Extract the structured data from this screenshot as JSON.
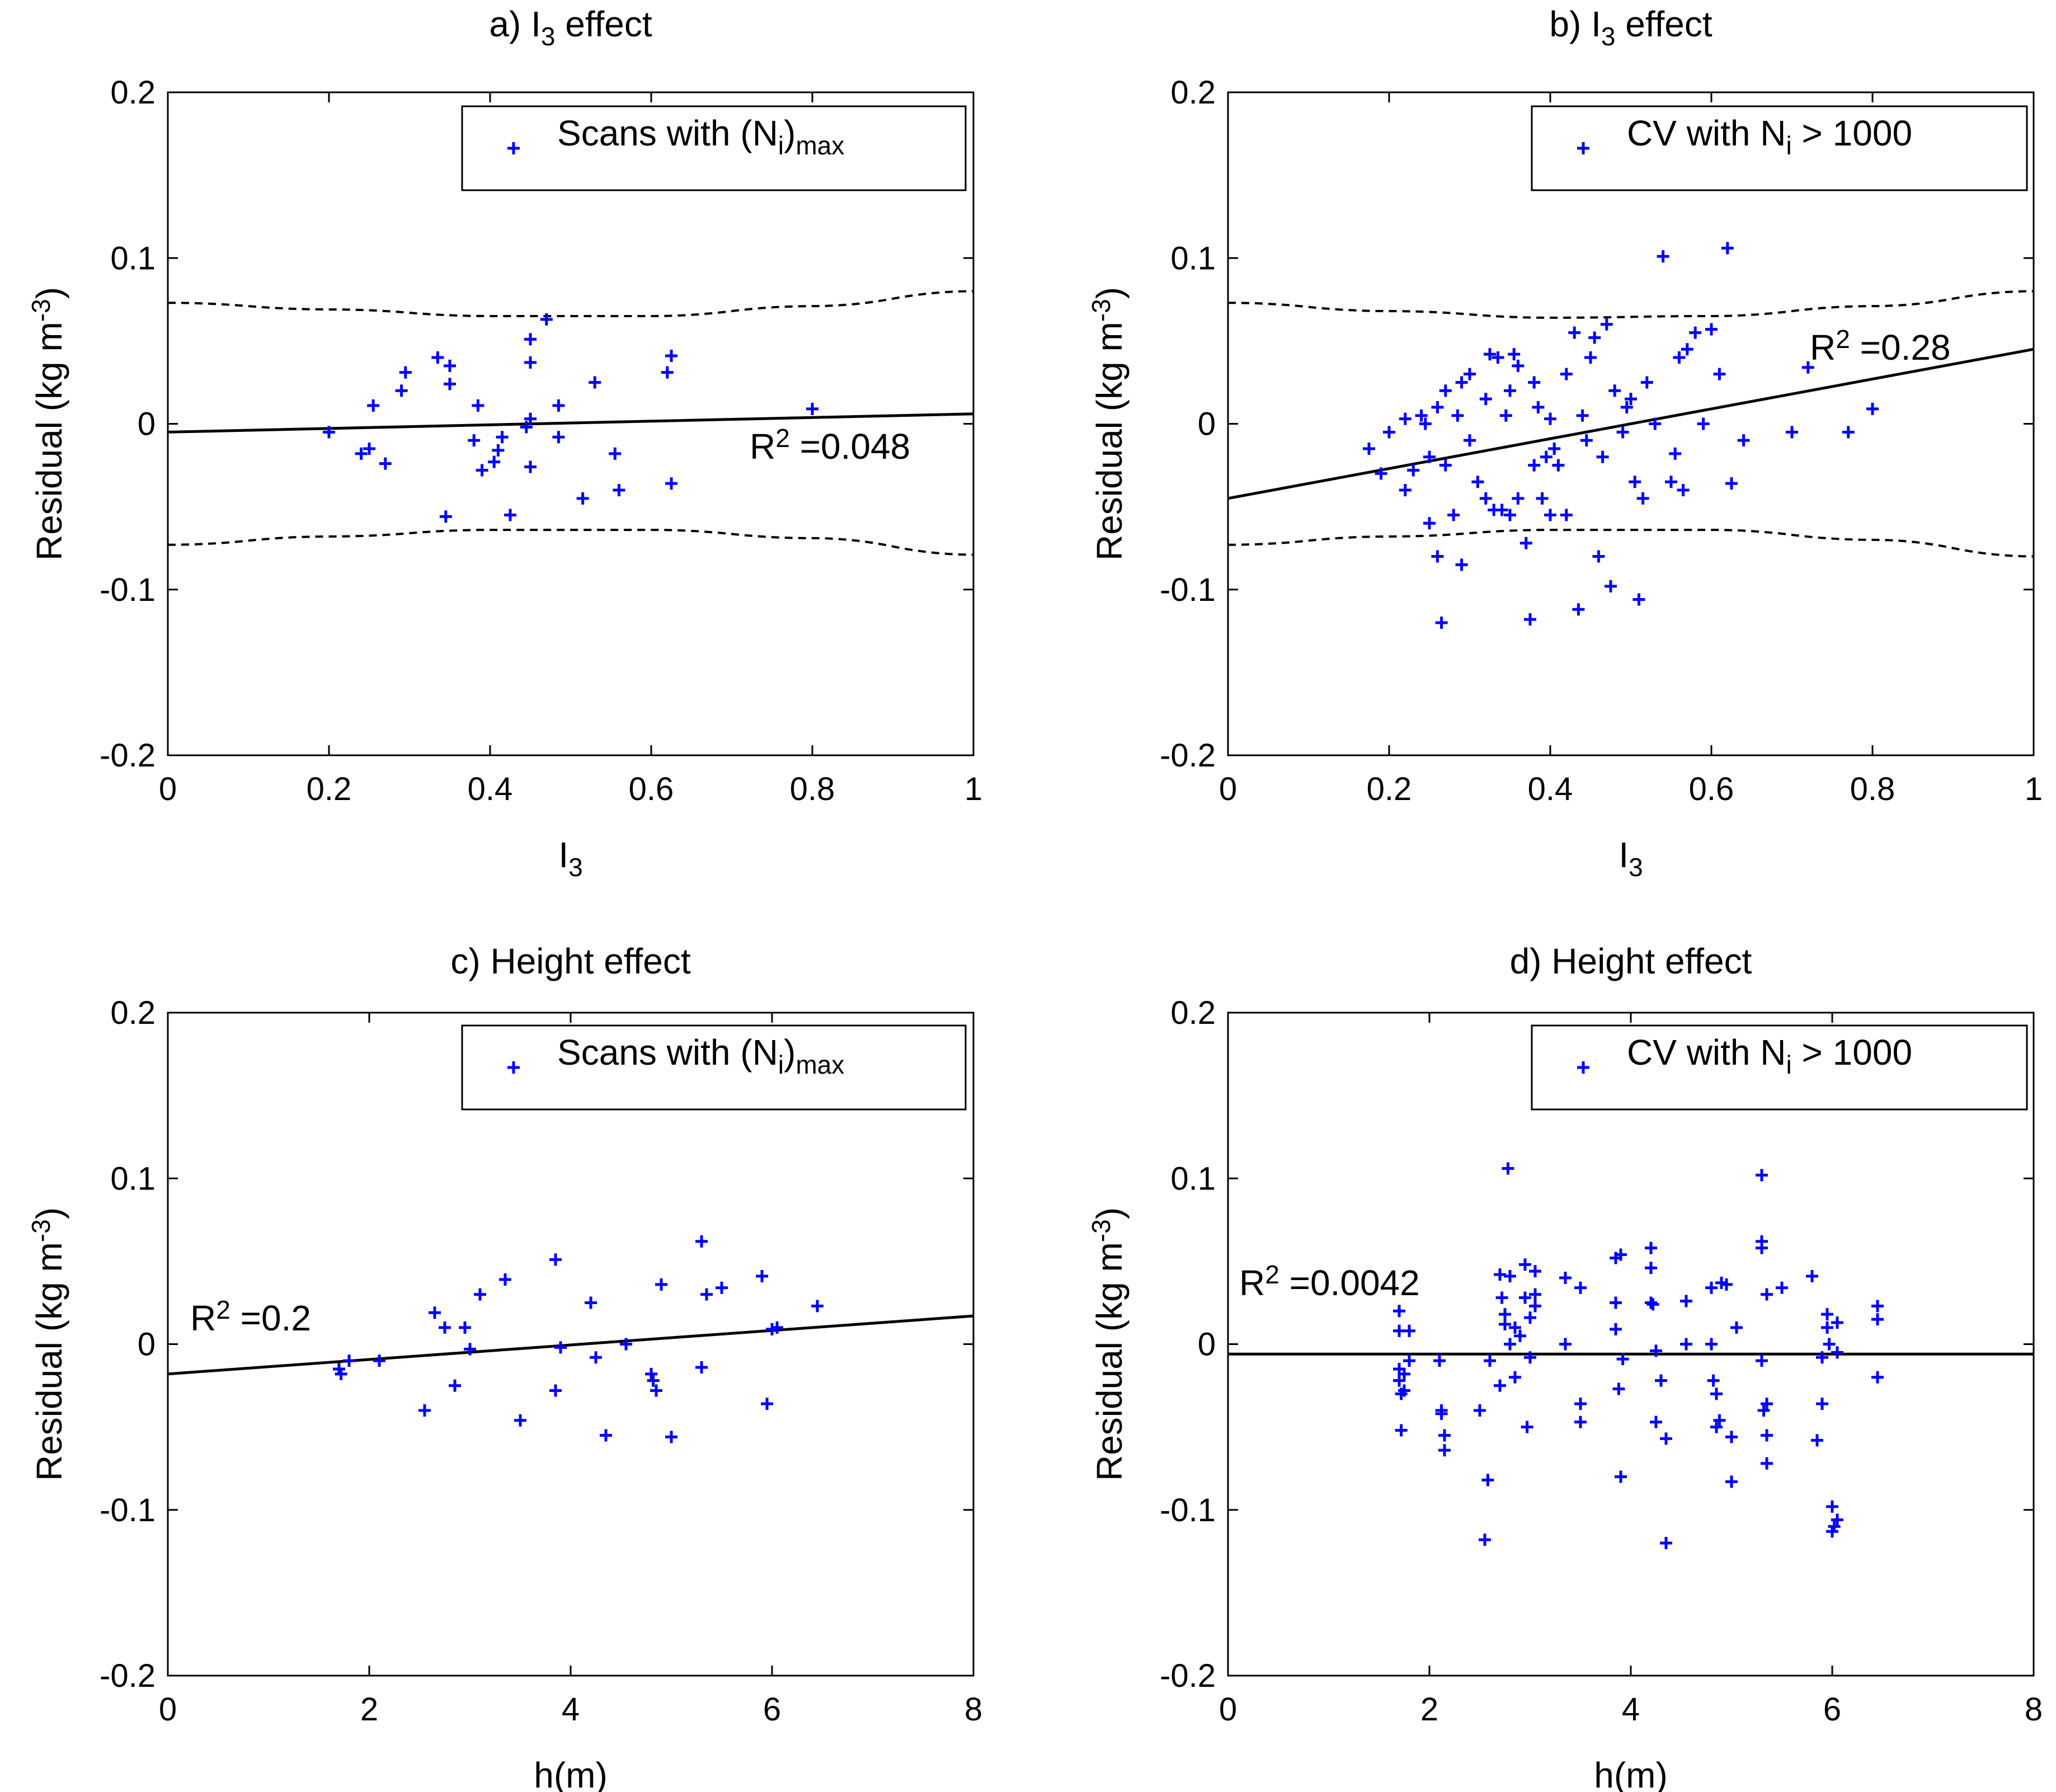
{
  "colors": {
    "marker": "#0000ff",
    "line": "#000000",
    "axes": "#000000",
    "background": "#ffffff"
  },
  "chart_data": [
    {
      "id": "a",
      "type": "scatter",
      "title": {
        "prefix": "a) I",
        "sub": "3",
        "suffix": " effect"
      },
      "xlabel": {
        "main": "I",
        "sub": "3"
      },
      "ylabel": {
        "main": "Residual (kg m",
        "sup": "-3",
        "end": ")"
      },
      "xlim": [
        0,
        1
      ],
      "ylim": [
        -0.2,
        0.2
      ],
      "xticks": [
        "0",
        "0.2",
        "0.4",
        "0.6",
        "0.8",
        "1"
      ],
      "yticks": [
        "-0.2",
        "-0.1",
        "0",
        "0.1",
        "0.2"
      ],
      "legend": {
        "parts": [
          "Scans with (N",
          "i",
          ")",
          "max"
        ],
        "position": "top-right",
        "marker": "+"
      },
      "r2": {
        "lead": "R",
        "sup": "2",
        "value": " =0.048"
      },
      "fit_line": {
        "x": [
          0,
          1
        ],
        "y": [
          -0.005,
          0.006
        ]
      },
      "confidence_bounds": {
        "upper": {
          "x": [
            0,
            0.2,
            0.4,
            0.6,
            0.8,
            1
          ],
          "y": [
            0.073,
            0.069,
            0.065,
            0.065,
            0.071,
            0.08
          ]
        },
        "lower": {
          "x": [
            0,
            0.2,
            0.4,
            0.6,
            0.8,
            1
          ],
          "y": [
            -0.073,
            -0.068,
            -0.064,
            -0.064,
            -0.069,
            -0.079
          ]
        }
      },
      "points": [
        [
          0.2,
          -0.005
        ],
        [
          0.24,
          -0.018
        ],
        [
          0.25,
          -0.015
        ],
        [
          0.255,
          0.011
        ],
        [
          0.27,
          -0.024
        ],
        [
          0.29,
          0.02
        ],
        [
          0.295,
          0.031
        ],
        [
          0.335,
          0.04
        ],
        [
          0.35,
          0.035
        ],
        [
          0.35,
          0.024
        ],
        [
          0.345,
          -0.056
        ],
        [
          0.38,
          -0.01
        ],
        [
          0.385,
          0.011
        ],
        [
          0.39,
          -0.028
        ],
        [
          0.405,
          -0.023
        ],
        [
          0.41,
          -0.016
        ],
        [
          0.415,
          -0.008
        ],
        [
          0.425,
          -0.055
        ],
        [
          0.445,
          -0.002
        ],
        [
          0.45,
          0.003
        ],
        [
          0.45,
          0.037
        ],
        [
          0.45,
          -0.026
        ],
        [
          0.45,
          0.051
        ],
        [
          0.47,
          0.063
        ],
        [
          0.485,
          0.011
        ],
        [
          0.485,
          -0.008
        ],
        [
          0.515,
          -0.045
        ],
        [
          0.53,
          0.025
        ],
        [
          0.555,
          -0.018
        ],
        [
          0.56,
          -0.04
        ],
        [
          0.62,
          0.031
        ],
        [
          0.625,
          0.041
        ],
        [
          0.625,
          -0.036
        ],
        [
          0.8,
          0.009
        ]
      ]
    },
    {
      "id": "b",
      "type": "scatter",
      "title": {
        "prefix": "b) I",
        "sub": "3",
        "suffix": " effect"
      },
      "xlabel": {
        "main": "I",
        "sub": "3"
      },
      "ylabel": {
        "main": "Residual (kg m",
        "sup": "-3",
        "end": ")"
      },
      "xlim": [
        0,
        1
      ],
      "ylim": [
        -0.2,
        0.2
      ],
      "xticks": [
        "0",
        "0.2",
        "0.4",
        "0.6",
        "0.8",
        "1"
      ],
      "yticks": [
        "-0.2",
        "-0.1",
        "0",
        "0.1",
        "0.2"
      ],
      "legend": {
        "parts": [
          "CV with N",
          "i",
          " > 1000"
        ],
        "position": "top-right",
        "marker": "+"
      },
      "r2": {
        "lead": "R",
        "sup": "2",
        "value": " =0.28"
      },
      "fit_line": {
        "x": [
          0,
          1
        ],
        "y": [
          -0.045,
          0.045
        ]
      },
      "confidence_bounds": {
        "upper": {
          "x": [
            0,
            0.2,
            0.4,
            0.6,
            0.8,
            1
          ],
          "y": [
            0.073,
            0.068,
            0.064,
            0.065,
            0.071,
            0.08
          ]
        },
        "lower": {
          "x": [
            0,
            0.2,
            0.4,
            0.6,
            0.8,
            1
          ],
          "y": [
            -0.073,
            -0.068,
            -0.064,
            -0.064,
            -0.07,
            -0.08
          ]
        }
      },
      "points": [
        [
          0.175,
          -0.015
        ],
        [
          0.19,
          -0.03
        ],
        [
          0.2,
          -0.005
        ],
        [
          0.22,
          0.003
        ],
        [
          0.22,
          -0.04
        ],
        [
          0.23,
          -0.028
        ],
        [
          0.24,
          0.005
        ],
        [
          0.245,
          0.0
        ],
        [
          0.25,
          -0.02
        ],
        [
          0.25,
          -0.06
        ],
        [
          0.26,
          0.01
        ],
        [
          0.26,
          -0.08
        ],
        [
          0.265,
          -0.12
        ],
        [
          0.27,
          0.02
        ],
        [
          0.27,
          -0.025
        ],
        [
          0.28,
          -0.055
        ],
        [
          0.285,
          0.005
        ],
        [
          0.29,
          -0.085
        ],
        [
          0.29,
          0.025
        ],
        [
          0.3,
          0.03
        ],
        [
          0.3,
          -0.01
        ],
        [
          0.31,
          -0.035
        ],
        [
          0.32,
          -0.045
        ],
        [
          0.32,
          0.015
        ],
        [
          0.325,
          0.042
        ],
        [
          0.33,
          -0.052
        ],
        [
          0.335,
          0.04
        ],
        [
          0.34,
          -0.052
        ],
        [
          0.345,
          0.005
        ],
        [
          0.35,
          -0.055
        ],
        [
          0.35,
          0.02
        ],
        [
          0.355,
          0.042
        ],
        [
          0.36,
          0.035
        ],
        [
          0.36,
          -0.045
        ],
        [
          0.37,
          -0.072
        ],
        [
          0.375,
          -0.118
        ],
        [
          0.38,
          -0.025
        ],
        [
          0.38,
          0.025
        ],
        [
          0.385,
          0.01
        ],
        [
          0.39,
          -0.045
        ],
        [
          0.395,
          -0.02
        ],
        [
          0.4,
          0.003
        ],
        [
          0.4,
          -0.055
        ],
        [
          0.405,
          -0.015
        ],
        [
          0.41,
          -0.025
        ],
        [
          0.42,
          0.03
        ],
        [
          0.42,
          -0.055
        ],
        [
          0.43,
          0.055
        ],
        [
          0.435,
          -0.112
        ],
        [
          0.44,
          0.005
        ],
        [
          0.445,
          -0.01
        ],
        [
          0.45,
          0.04
        ],
        [
          0.455,
          0.052
        ],
        [
          0.46,
          -0.08
        ],
        [
          0.465,
          -0.02
        ],
        [
          0.47,
          0.06
        ],
        [
          0.475,
          -0.098
        ],
        [
          0.48,
          0.02
        ],
        [
          0.49,
          -0.005
        ],
        [
          0.495,
          0.01
        ],
        [
          0.5,
          0.015
        ],
        [
          0.505,
          -0.035
        ],
        [
          0.51,
          -0.106
        ],
        [
          0.515,
          -0.045
        ],
        [
          0.52,
          0.025
        ],
        [
          0.53,
          0.0
        ],
        [
          0.54,
          0.101
        ],
        [
          0.55,
          -0.035
        ],
        [
          0.555,
          -0.018
        ],
        [
          0.56,
          0.04
        ],
        [
          0.565,
          -0.04
        ],
        [
          0.57,
          0.045
        ],
        [
          0.58,
          0.055
        ],
        [
          0.59,
          0.0
        ],
        [
          0.6,
          0.057
        ],
        [
          0.61,
          0.03
        ],
        [
          0.62,
          0.106
        ],
        [
          0.625,
          -0.036
        ],
        [
          0.64,
          -0.01
        ],
        [
          0.7,
          -0.005
        ],
        [
          0.72,
          0.034
        ],
        [
          0.77,
          -0.005
        ],
        [
          0.8,
          0.009
        ]
      ]
    },
    {
      "id": "c",
      "type": "scatter",
      "title": {
        "prefix": "c) Height effect",
        "sub": "",
        "suffix": ""
      },
      "xlabel": {
        "main": "h(m)",
        "sub": ""
      },
      "ylabel": {
        "main": "Residual (kg m",
        "sup": "-3",
        "end": ")"
      },
      "xlim": [
        0,
        8
      ],
      "ylim": [
        -0.2,
        0.2
      ],
      "xticks": [
        "0",
        "2",
        "4",
        "6",
        "8"
      ],
      "yticks": [
        "-0.2",
        "-0.1",
        "0",
        "0.1",
        "0.2"
      ],
      "legend": {
        "parts": [
          "Scans with (N",
          "i",
          ")",
          "max"
        ],
        "position": "top-right",
        "marker": "+"
      },
      "r2": {
        "lead": "R",
        "sup": "2",
        "value": " =0.2"
      },
      "fit_line": {
        "x": [
          0,
          8
        ],
        "y": [
          -0.018,
          0.017
        ]
      },
      "points": [
        [
          1.7,
          -0.015
        ],
        [
          1.72,
          -0.018
        ],
        [
          1.8,
          -0.01
        ],
        [
          2.1,
          -0.01
        ],
        [
          2.55,
          -0.04
        ],
        [
          2.65,
          0.019
        ],
        [
          2.75,
          0.01
        ],
        [
          2.85,
          -0.025
        ],
        [
          2.95,
          0.01
        ],
        [
          3.0,
          -0.003
        ],
        [
          3.1,
          0.03
        ],
        [
          3.35,
          0.039
        ],
        [
          3.5,
          -0.046
        ],
        [
          3.85,
          0.051
        ],
        [
          3.85,
          -0.028
        ],
        [
          3.9,
          -0.002
        ],
        [
          4.2,
          0.025
        ],
        [
          4.25,
          -0.008
        ],
        [
          4.35,
          -0.055
        ],
        [
          4.55,
          0.0
        ],
        [
          4.8,
          -0.018
        ],
        [
          4.82,
          -0.022
        ],
        [
          4.85,
          -0.028
        ],
        [
          4.9,
          0.036
        ],
        [
          5.0,
          -0.056
        ],
        [
          5.3,
          0.062
        ],
        [
          5.3,
          -0.014
        ],
        [
          5.35,
          0.03
        ],
        [
          5.5,
          0.034
        ],
        [
          5.9,
          0.041
        ],
        [
          5.95,
          -0.036
        ],
        [
          6.0,
          0.009
        ],
        [
          6.05,
          0.01
        ],
        [
          6.45,
          0.023
        ]
      ]
    },
    {
      "id": "d",
      "type": "scatter",
      "title": {
        "prefix": "d) Height effect",
        "sub": "",
        "suffix": ""
      },
      "xlabel": {
        "main": "h(m)",
        "sub": ""
      },
      "ylabel": {
        "main": "Residual (kg m",
        "sup": "-3",
        "end": ")"
      },
      "xlim": [
        0,
        8
      ],
      "ylim": [
        -0.2,
        0.2
      ],
      "xticks": [
        "0",
        "2",
        "4",
        "6",
        "8"
      ],
      "yticks": [
        "-0.2",
        "-0.1",
        "0",
        "0.1",
        "0.2"
      ],
      "legend": {
        "parts": [
          "CV with N",
          "i",
          " > 1000"
        ],
        "position": "top-right",
        "marker": "+"
      },
      "r2": {
        "lead": "R",
        "sup": "2",
        "value": " =0.0042"
      },
      "fit_line": {
        "x": [
          0,
          8
        ],
        "y": [
          -0.006,
          -0.006
        ]
      },
      "points": [
        [
          1.7,
          0.02
        ],
        [
          1.7,
          0.008
        ],
        [
          1.7,
          -0.015
        ],
        [
          1.7,
          -0.022
        ],
        [
          1.72,
          -0.03
        ],
        [
          1.72,
          -0.052
        ],
        [
          1.75,
          -0.018
        ],
        [
          1.75,
          -0.028
        ],
        [
          1.8,
          0.008
        ],
        [
          1.8,
          -0.01
        ],
        [
          2.1,
          -0.01
        ],
        [
          2.12,
          -0.04
        ],
        [
          2.12,
          -0.042
        ],
        [
          2.15,
          -0.055
        ],
        [
          2.15,
          -0.064
        ],
        [
          2.5,
          -0.04
        ],
        [
          2.55,
          -0.118
        ],
        [
          2.58,
          -0.082
        ],
        [
          2.6,
          -0.01
        ],
        [
          2.7,
          0.042
        ],
        [
          2.7,
          -0.025
        ],
        [
          2.72,
          0.028
        ],
        [
          2.75,
          0.018
        ],
        [
          2.75,
          0.012
        ],
        [
          2.78,
          0.106
        ],
        [
          2.8,
          0.041
        ],
        [
          2.8,
          0.0
        ],
        [
          2.85,
          -0.02
        ],
        [
          2.85,
          0.01
        ],
        [
          2.9,
          0.005
        ],
        [
          2.95,
          0.048
        ],
        [
          2.95,
          0.028
        ],
        [
          2.97,
          -0.05
        ],
        [
          3.0,
          0.016
        ],
        [
          3.0,
          -0.008
        ],
        [
          3.05,
          0.044
        ],
        [
          3.05,
          0.03
        ],
        [
          3.05,
          0.023
        ],
        [
          3.35,
          0.04
        ],
        [
          3.35,
          0.0
        ],
        [
          3.5,
          0.034
        ],
        [
          3.5,
          -0.036
        ],
        [
          3.5,
          -0.047
        ],
        [
          3.85,
          0.052
        ],
        [
          3.85,
          0.025
        ],
        [
          3.85,
          0.009
        ],
        [
          3.88,
          -0.027
        ],
        [
          3.9,
          0.054
        ],
        [
          3.9,
          -0.08
        ],
        [
          3.92,
          -0.009
        ],
        [
          4.2,
          0.058
        ],
        [
          4.2,
          0.046
        ],
        [
          4.2,
          0.025
        ],
        [
          4.22,
          0.024
        ],
        [
          4.25,
          -0.004
        ],
        [
          4.25,
          -0.047
        ],
        [
          4.3,
          -0.022
        ],
        [
          4.35,
          -0.12
        ],
        [
          4.35,
          -0.057
        ],
        [
          4.55,
          0.026
        ],
        [
          4.55,
          0.0
        ],
        [
          4.8,
          0.034
        ],
        [
          4.8,
          0.0
        ],
        [
          4.82,
          -0.022
        ],
        [
          4.85,
          -0.05
        ],
        [
          4.85,
          -0.03
        ],
        [
          4.88,
          -0.046
        ],
        [
          4.9,
          0.037
        ],
        [
          4.95,
          0.036
        ],
        [
          5.0,
          -0.083
        ],
        [
          5.0,
          -0.056
        ],
        [
          5.05,
          0.01
        ],
        [
          5.3,
          0.102
        ],
        [
          5.3,
          0.058
        ],
        [
          5.3,
          0.062
        ],
        [
          5.3,
          -0.01
        ],
        [
          5.32,
          -0.04
        ],
        [
          5.35,
          -0.036
        ],
        [
          5.35,
          -0.055
        ],
        [
          5.35,
          -0.072
        ],
        [
          5.35,
          0.03
        ],
        [
          5.5,
          0.034
        ],
        [
          5.8,
          0.041
        ],
        [
          5.85,
          -0.058
        ],
        [
          5.9,
          -0.008
        ],
        [
          5.9,
          -0.036
        ],
        [
          5.95,
          0.018
        ],
        [
          5.95,
          0.01
        ],
        [
          5.97,
          0.0
        ],
        [
          6.0,
          -0.098
        ],
        [
          6.0,
          -0.113
        ],
        [
          6.02,
          -0.11
        ],
        [
          6.05,
          -0.106
        ],
        [
          6.05,
          0.013
        ],
        [
          6.05,
          -0.005
        ],
        [
          6.45,
          0.023
        ],
        [
          6.45,
          0.015
        ],
        [
          6.45,
          -0.02
        ]
      ]
    }
  ]
}
